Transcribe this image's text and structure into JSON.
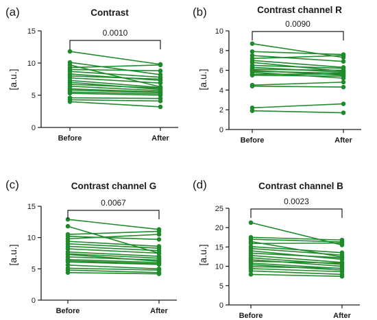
{
  "colors": {
    "series": "#1f8a2a",
    "axis": "#1a1a1a"
  },
  "chart_data": [
    {
      "type": "line",
      "panel": "(a)",
      "title": "Contrast",
      "ylabel": "[a.u.]",
      "categories": [
        "Before",
        "After"
      ],
      "ylim": [
        0,
        15
      ],
      "yticks": [
        0,
        5,
        10,
        15
      ],
      "p_value": "0.0010",
      "pairs": [
        [
          11.8,
          9.8
        ],
        [
          10.1,
          8.2
        ],
        [
          9.7,
          6.3
        ],
        [
          9.3,
          9.7
        ],
        [
          9.0,
          8.8
        ],
        [
          8.7,
          7.8
        ],
        [
          8.3,
          7.3
        ],
        [
          8.0,
          7.5
        ],
        [
          7.7,
          6.9
        ],
        [
          7.3,
          6.2
        ],
        [
          7.0,
          5.9
        ],
        [
          6.7,
          6.1
        ],
        [
          6.4,
          5.7
        ],
        [
          6.0,
          5.5
        ],
        [
          5.8,
          5.4
        ],
        [
          5.5,
          5.2
        ],
        [
          5.3,
          5.0
        ],
        [
          4.6,
          4.5
        ],
        [
          4.3,
          4.1
        ],
        [
          4.0,
          3.2
        ]
      ]
    },
    {
      "type": "line",
      "panel": "(b)",
      "title": "Contrast channel R",
      "ylabel": "[a.u.]",
      "categories": [
        "Before",
        "After"
      ],
      "ylim": [
        0,
        10
      ],
      "yticks": [
        0,
        2,
        4,
        6,
        8,
        10
      ],
      "p_value": "0.0090",
      "pairs": [
        [
          8.7,
          7.3
        ],
        [
          7.9,
          7.6
        ],
        [
          7.5,
          6.9
        ],
        [
          7.2,
          7.5
        ],
        [
          7.0,
          6.3
        ],
        [
          6.8,
          5.9
        ],
        [
          6.5,
          6.2
        ],
        [
          6.3,
          5.8
        ],
        [
          6.1,
          6.0
        ],
        [
          6.0,
          5.5
        ],
        [
          5.9,
          5.7
        ],
        [
          5.8,
          5.2
        ],
        [
          5.6,
          5.6
        ],
        [
          5.5,
          5.4
        ],
        [
          4.5,
          4.8
        ],
        [
          4.4,
          4.3
        ],
        [
          2.2,
          2.6
        ],
        [
          1.9,
          1.7
        ]
      ]
    },
    {
      "type": "line",
      "panel": "(c)",
      "title": "Contrast channel G",
      "ylabel": "[a.u.]",
      "categories": [
        "Before",
        "After"
      ],
      "ylim": [
        0,
        15
      ],
      "yticks": [
        0,
        5,
        10,
        15
      ],
      "p_value": "0.0067",
      "pairs": [
        [
          12.9,
          11.3
        ],
        [
          11.8,
          7.5
        ],
        [
          10.5,
          11.0
        ],
        [
          10.2,
          9.7
        ],
        [
          9.8,
          10.5
        ],
        [
          9.4,
          8.6
        ],
        [
          9.0,
          8.3
        ],
        [
          8.6,
          7.9
        ],
        [
          8.2,
          7.5
        ],
        [
          7.7,
          7.0
        ],
        [
          7.4,
          6.7
        ],
        [
          7.3,
          6.2
        ],
        [
          6.9,
          6.4
        ],
        [
          6.5,
          6.0
        ],
        [
          6.3,
          5.8
        ],
        [
          6.1,
          5.7
        ],
        [
          5.6,
          5.0
        ],
        [
          5.1,
          4.8
        ],
        [
          4.8,
          4.4
        ],
        [
          4.4,
          4.2
        ]
      ]
    },
    {
      "type": "line",
      "panel": "(d)",
      "title": "Contrast channel B",
      "ylabel": "[a.u.]",
      "categories": [
        "Before",
        "After"
      ],
      "ylim": [
        0,
        25
      ],
      "yticks": [
        0,
        5,
        10,
        15,
        20,
        25
      ],
      "p_value": "0.0023",
      "pairs": [
        [
          21.3,
          15.5
        ],
        [
          17.5,
          16.8
        ],
        [
          17.0,
          16.3
        ],
        [
          16.4,
          12.4
        ],
        [
          15.9,
          16.0
        ],
        [
          15.1,
          13.5
        ],
        [
          14.6,
          12.9
        ],
        [
          14.0,
          11.8
        ],
        [
          13.4,
          12.2
        ],
        [
          12.8,
          11.0
        ],
        [
          12.2,
          10.5
        ],
        [
          11.7,
          10.0
        ],
        [
          11.3,
          10.8
        ],
        [
          10.8,
          9.4
        ],
        [
          10.4,
          9.0
        ],
        [
          9.9,
          9.5
        ],
        [
          9.4,
          8.6
        ],
        [
          8.8,
          7.9
        ],
        [
          7.9,
          7.4
        ]
      ]
    }
  ]
}
